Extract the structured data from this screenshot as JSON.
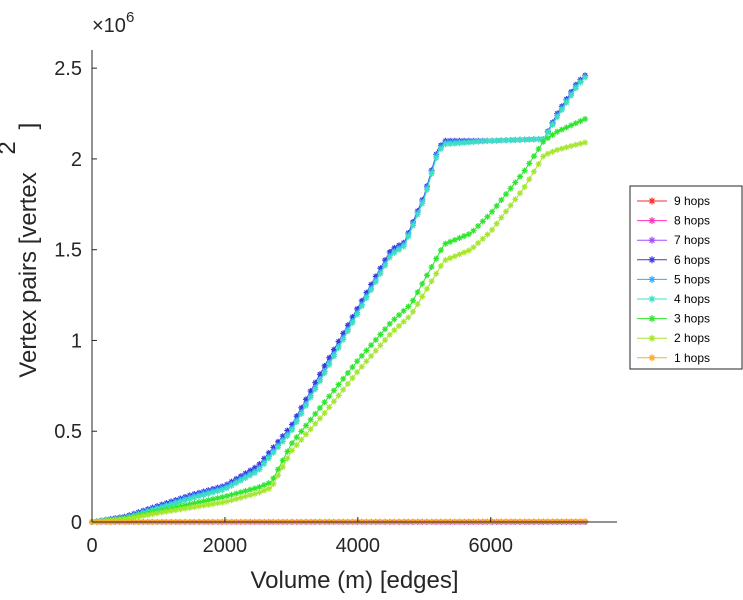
{
  "chart_data": {
    "type": "line",
    "xlabel": "Volume (m) [edges]",
    "ylabel": "Vertex pairs [vertex",
    "ylabel_superscript": "2",
    "ylabel_suffix": "]",
    "y_exponent_base": "×10",
    "y_exponent_power": "6",
    "xlim": [
      0,
      7900
    ],
    "ylim": [
      0,
      2600000
    ],
    "xticks": [
      0,
      2000,
      4000,
      6000
    ],
    "xtick_labels": [
      "0",
      "2000",
      "4000",
      "6000"
    ],
    "yticks": [
      0,
      500000,
      1000000,
      1500000,
      2000000,
      2500000
    ],
    "ytick_labels": [
      "0",
      "0.5",
      "1",
      "1.5",
      "2",
      "2.5"
    ],
    "grid": false,
    "marker": "asterisk",
    "legend_position": "right",
    "series": [
      {
        "name": "9 hops",
        "color": "#ff2a2a",
        "x": [
          0,
          2000,
          4000,
          6000,
          7420
        ],
        "y": [
          0,
          0,
          0,
          0,
          0
        ]
      },
      {
        "name": "8 hops",
        "color": "#ff33bb",
        "x": [
          0,
          2000,
          4000,
          6000,
          7420
        ],
        "y": [
          0,
          0,
          0,
          0,
          0
        ]
      },
      {
        "name": "7 hops",
        "color": "#a64dff",
        "x": [
          0,
          2000,
          4000,
          6000,
          7420
        ],
        "y": [
          0,
          0,
          0,
          0,
          0
        ]
      },
      {
        "name": "6 hops",
        "color": "#3b3bdc",
        "x": [
          0,
          500,
          1000,
          1500,
          2000,
          2500,
          3000,
          3500,
          4000,
          4500,
          4700,
          5000,
          5200,
          5300,
          6000,
          6800,
          7000,
          7300,
          7420
        ],
        "y": [
          0,
          30000,
          90000,
          150000,
          200000,
          310000,
          530000,
          860000,
          1180000,
          1500000,
          1540000,
          1800000,
          2050000,
          2100000,
          2100000,
          2110000,
          2250000,
          2420000,
          2460000
        ]
      },
      {
        "name": "5 hops",
        "color": "#33aaff",
        "x": [
          0,
          500,
          1000,
          1500,
          2000,
          2500,
          3000,
          3500,
          4000,
          4500,
          4700,
          5000,
          5200,
          5300,
          6000,
          6800,
          7000,
          7300,
          7420
        ],
        "y": [
          0,
          25000,
          80000,
          140000,
          190000,
          290000,
          510000,
          830000,
          1160000,
          1480000,
          1530000,
          1790000,
          2040000,
          2090000,
          2100000,
          2110000,
          2240000,
          2410000,
          2450000
        ]
      },
      {
        "name": "4 hops",
        "color": "#3de0c0",
        "x": [
          0,
          500,
          1000,
          1500,
          2000,
          2500,
          3000,
          3500,
          4000,
          4500,
          4700,
          5000,
          5200,
          5300,
          6000,
          6800,
          7000,
          7300,
          7420
        ],
        "y": [
          0,
          20000,
          75000,
          130000,
          180000,
          280000,
          500000,
          820000,
          1150000,
          1470000,
          1520000,
          1780000,
          2030000,
          2080000,
          2100000,
          2110000,
          2230000,
          2400000,
          2450000
        ]
      },
      {
        "name": "3 hops",
        "color": "#2ee62e",
        "x": [
          0,
          500,
          1000,
          1500,
          2000,
          2500,
          2700,
          3000,
          3500,
          4000,
          4500,
          4800,
          5300,
          5700,
          6000,
          6500,
          6800,
          7000,
          7300,
          7420
        ],
        "y": [
          0,
          20000,
          60000,
          100000,
          140000,
          190000,
          220000,
          430000,
          660000,
          890000,
          1100000,
          1200000,
          1530000,
          1590000,
          1700000,
          1930000,
          2100000,
          2150000,
          2200000,
          2220000
        ]
      },
      {
        "name": "2 hops",
        "color": "#a6e62e",
        "x": [
          0,
          500,
          1000,
          1500,
          2000,
          2500,
          2700,
          3000,
          3500,
          4000,
          4500,
          4800,
          5300,
          5700,
          6000,
          6500,
          6800,
          7000,
          7300,
          7420
        ],
        "y": [
          0,
          15000,
          50000,
          80000,
          110000,
          160000,
          190000,
          390000,
          600000,
          830000,
          1040000,
          1140000,
          1440000,
          1500000,
          1600000,
          1840000,
          2020000,
          2050000,
          2080000,
          2090000
        ]
      },
      {
        "name": "1 hops",
        "color": "#ffaa22",
        "x": [
          0,
          2000,
          4000,
          6000,
          7420
        ],
        "y": [
          0,
          1000,
          2000,
          3000,
          4000
        ]
      }
    ]
  }
}
